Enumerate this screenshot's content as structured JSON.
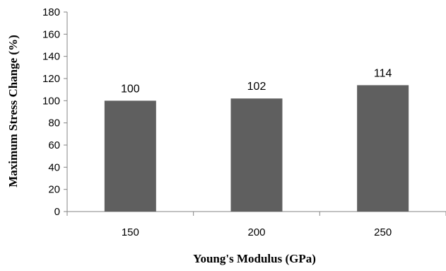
{
  "chart_data": {
    "type": "bar",
    "categories": [
      "150",
      "200",
      "250"
    ],
    "values": [
      100,
      102,
      114
    ],
    "data_labels": [
      "100",
      "102",
      "114"
    ],
    "title": "",
    "xlabel": "Young's Modulus (GPa)",
    "ylabel": "Maximum Stress Change (%)",
    "ylim": [
      0,
      180
    ],
    "yticks": [
      0,
      20,
      40,
      60,
      80,
      100,
      120,
      140,
      160,
      180
    ],
    "grid": false,
    "legend": "none",
    "bar_color": "#5f5f5f",
    "axis_color": "#868686"
  }
}
